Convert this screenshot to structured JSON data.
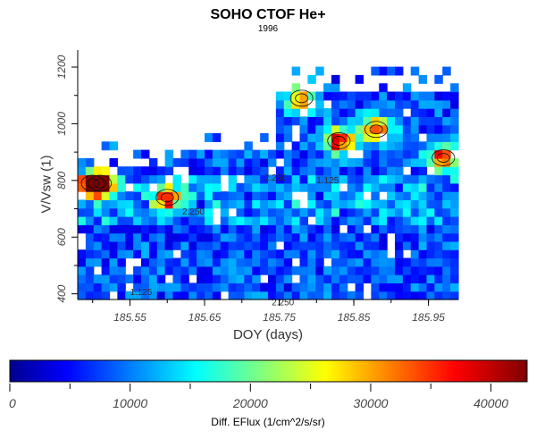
{
  "chart_data": {
    "type": "heatmap",
    "title": "SOHO CTOF He+",
    "subtitle": "1996",
    "xlabel": "DOY (days)",
    "ylabel": "V/Vsw (1)",
    "xlim": [
      185.48,
      185.99
    ],
    "ylim": [
      380,
      1260
    ],
    "x_ticks": [
      185.55,
      185.65,
      185.75,
      185.85,
      185.95
    ],
    "y_ticks": [
      400,
      600,
      800,
      1000,
      1200
    ],
    "colorbar": {
      "label": "Diff. EFlux (1/cm^2/s/sr)",
      "range": [
        0,
        43000
      ],
      "ticks": [
        0,
        10000,
        20000,
        30000,
        40000
      ],
      "colormap": "jet"
    },
    "contour_labels": [
      "1.125",
      "2.250",
      "2.250",
      "2.250",
      "1.125"
    ],
    "coverage": [
      {
        "x_start": 185.48,
        "x_end": 185.6,
        "y_max": 860
      },
      {
        "x_start": 185.6,
        "x_end": 185.75,
        "y_max": 900
      },
      {
        "x_start": 185.75,
        "x_end": 185.99,
        "y_max": 1120
      }
    ],
    "hotspots": [
      {
        "x": 185.5,
        "y": 790,
        "value": 30000
      },
      {
        "x": 185.51,
        "y": 790,
        "value": 38000
      },
      {
        "x": 185.6,
        "y": 740,
        "value": 32000
      },
      {
        "x": 185.78,
        "y": 1090,
        "value": 28000
      },
      {
        "x": 185.83,
        "y": 940,
        "value": 40000
      },
      {
        "x": 185.88,
        "y": 980,
        "value": 36000
      },
      {
        "x": 185.97,
        "y": 880,
        "value": 38000
      }
    ]
  }
}
